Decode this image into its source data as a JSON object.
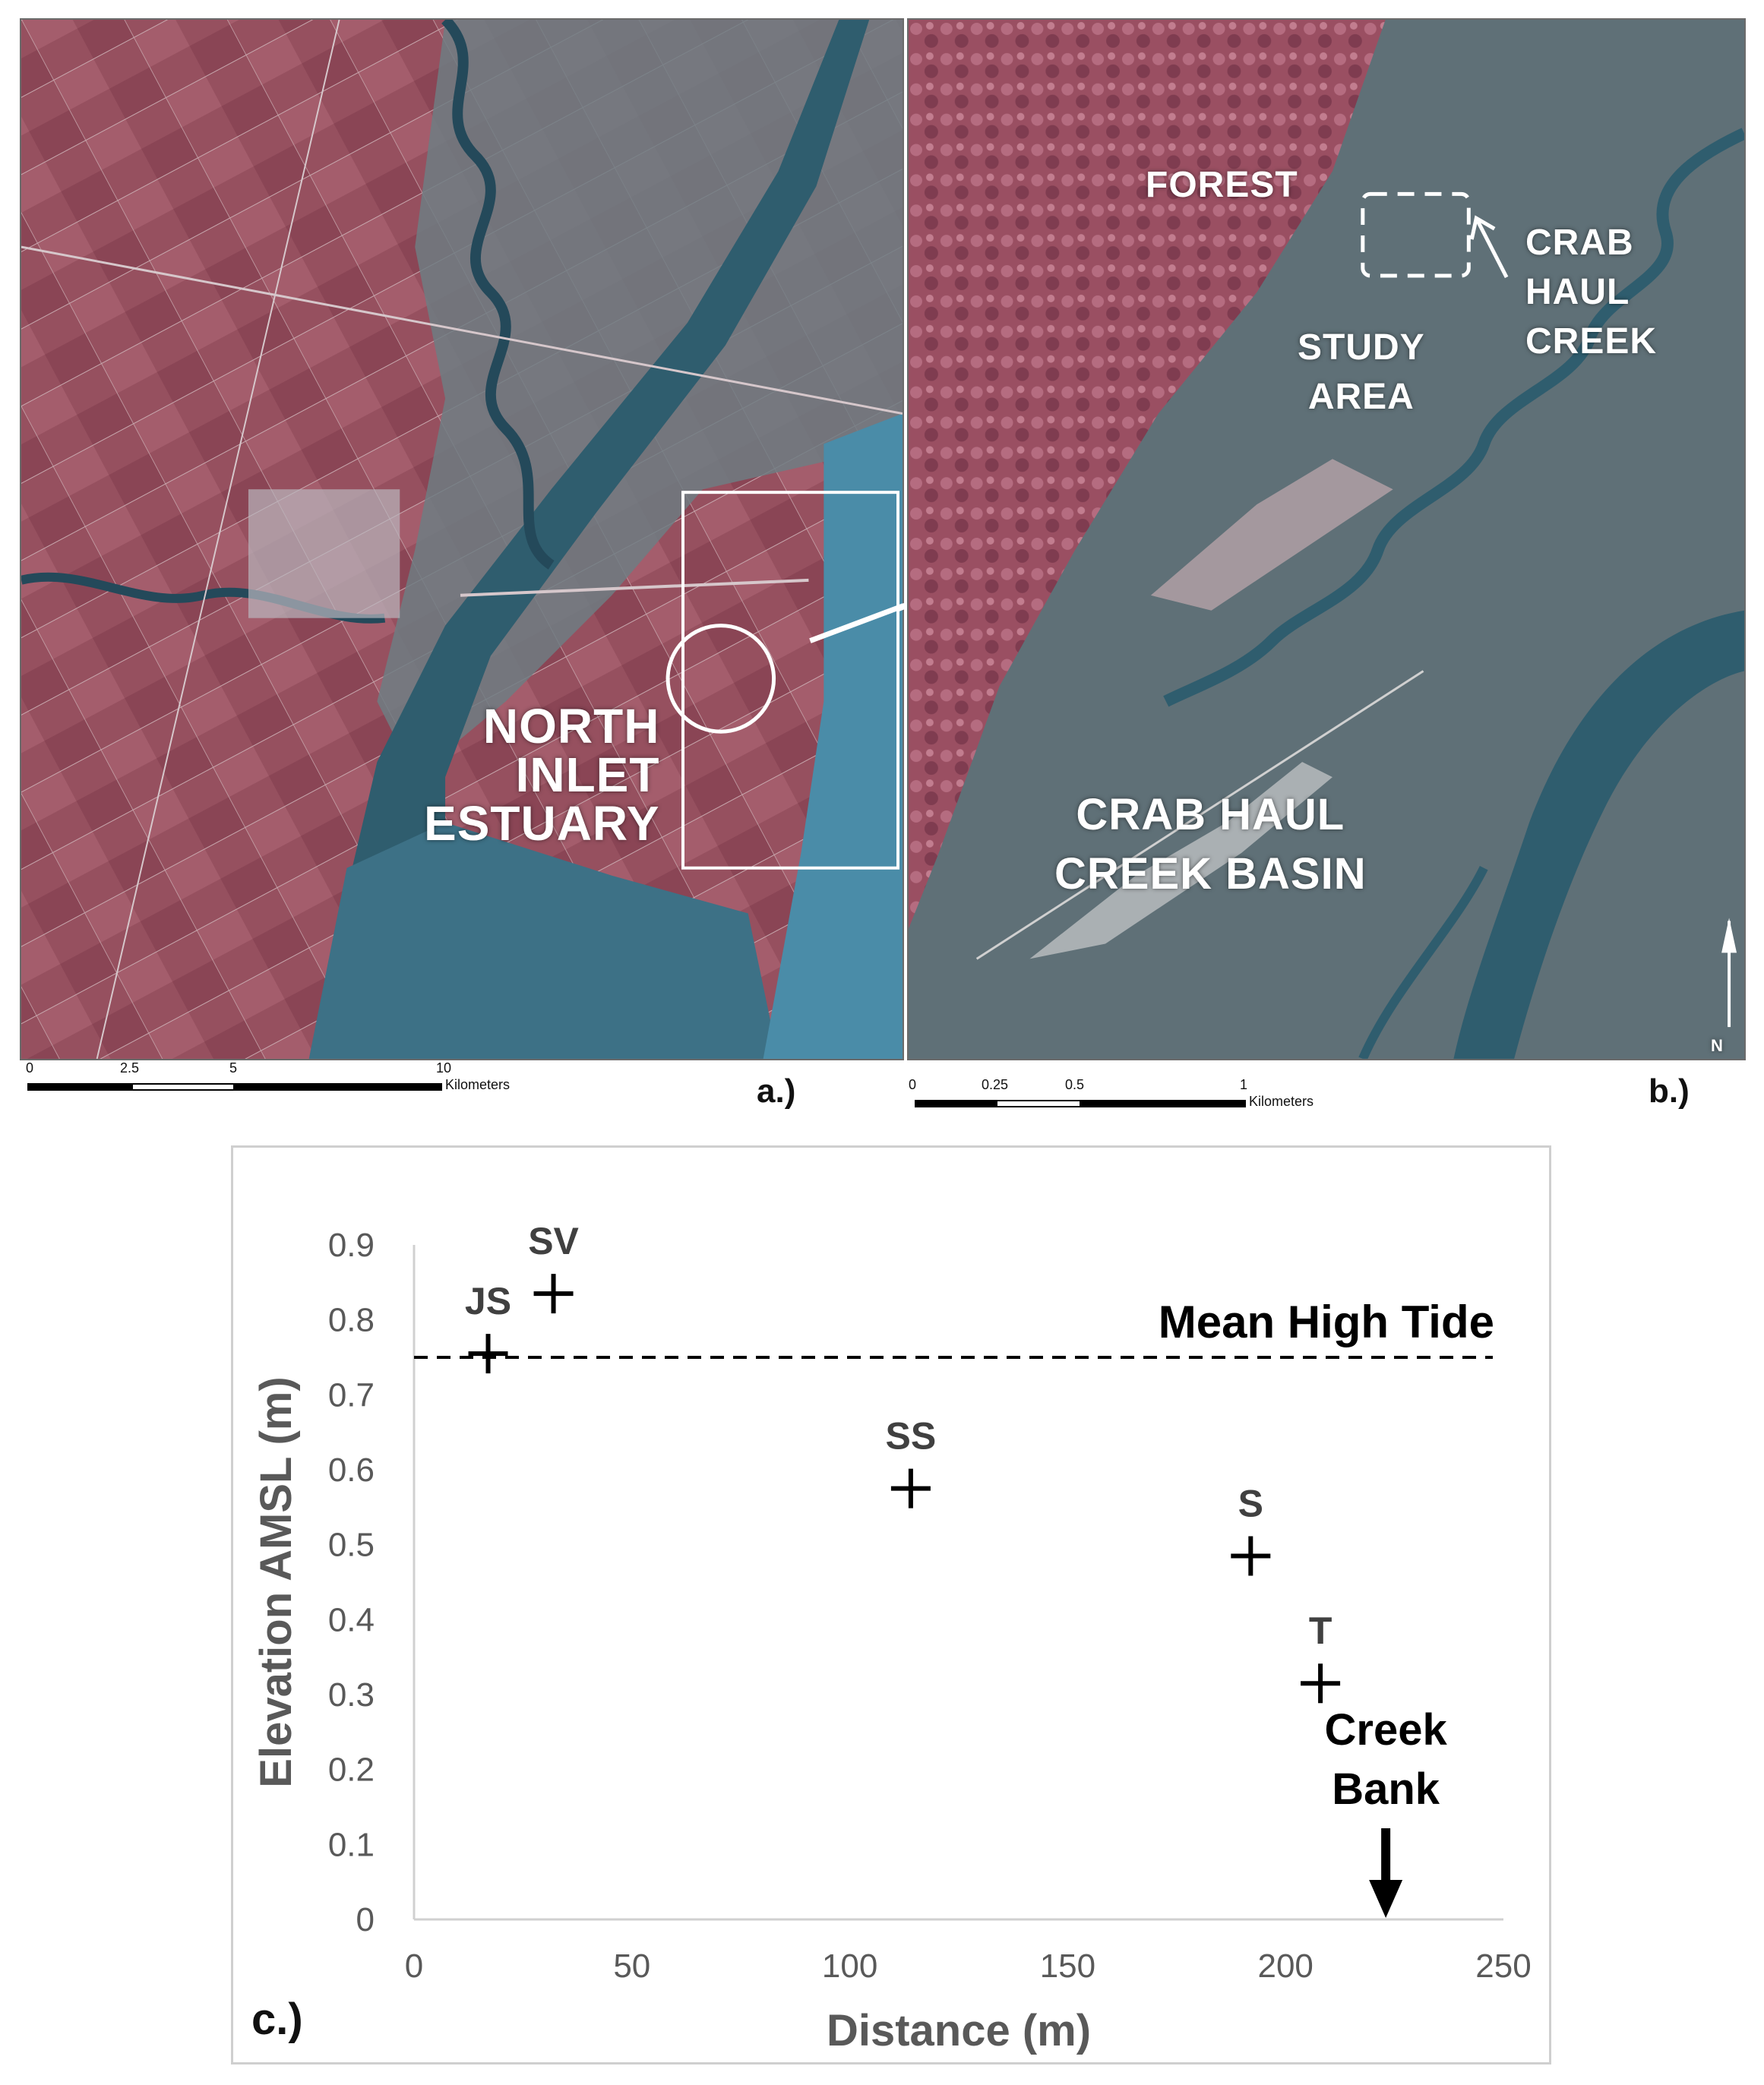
{
  "panel_a": {
    "label_estuary": "NORTH\nINLET\nESTUARY",
    "scale": {
      "ticks": [
        "0",
        "2.5",
        "5",
        "10"
      ],
      "unit": "Kilometers"
    },
    "tag": "a.)"
  },
  "panel_b": {
    "label_forest": "FOREST",
    "label_study": "STUDY\nAREA",
    "label_creek": "CRAB\nHAUL\nCREEK",
    "label_basin": "CRAB HAUL\nCREEK BASIN",
    "north": "N",
    "scale": {
      "ticks": [
        "0",
        "0.25",
        "0.5",
        "1"
      ],
      "unit": "Kilometers"
    },
    "tag": "b.)"
  },
  "panel_c": {
    "tag": "c.)"
  },
  "colors": {
    "vegetation": "#9a4f62",
    "marsh": "#5f7077",
    "water": "#2f5d6e",
    "ocean": "#4a8ca8"
  },
  "chart_data": {
    "type": "scatter",
    "xlabel": "Distance (m)",
    "ylabel": "Elevation AMSL (m)",
    "xlim": [
      0,
      250
    ],
    "ylim": [
      0,
      0.9
    ],
    "xticks": [
      0,
      50,
      100,
      150,
      200,
      250
    ],
    "yticks": [
      0,
      0.1,
      0.2,
      0.3,
      0.4,
      0.5,
      0.6,
      0.7,
      0.8,
      0.9
    ],
    "marker": "+",
    "points": [
      {
        "label": "JS",
        "x": 17,
        "y": 0.755
      },
      {
        "label": "SV",
        "x": 32,
        "y": 0.835
      },
      {
        "label": "SS",
        "x": 114,
        "y": 0.575
      },
      {
        "label": "S",
        "x": 192,
        "y": 0.485
      },
      {
        "label": "T",
        "x": 208,
        "y": 0.315
      }
    ],
    "reference_line": {
      "label": "Mean High Tide",
      "y": 0.75,
      "style": "dashed"
    },
    "annotation": {
      "text": "Creek\nBank",
      "x": 223,
      "arrow": "down"
    },
    "grid": false
  }
}
